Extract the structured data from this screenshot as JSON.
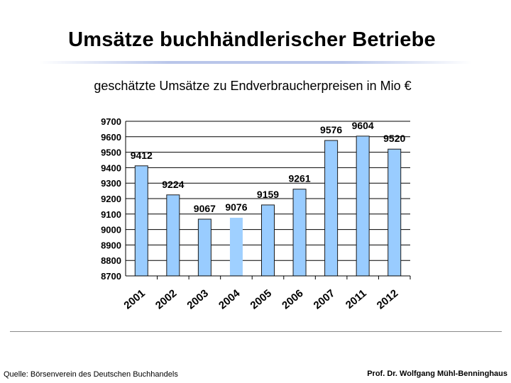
{
  "title": "Umsätze buchhändlerischer Betriebe",
  "subtitle": "geschätzte Umsätze zu Endverbraucherpreisen in Mio €",
  "footer": {
    "source": "Quelle: Börsenverein des Deutschen Buchhandels",
    "author": "Prof. Dr. Wolfgang Mühl-Benninghaus"
  },
  "colors": {
    "bar_primary": "#99ccff",
    "bar_highlight": "#9fd0ff",
    "bar_stroke": "#1a1a1a",
    "gridline": "#000000"
  },
  "chart_data": {
    "type": "bar",
    "title": "geschätzte Umsätze zu Endverbraucherpreisen in Mio €",
    "xlabel": "",
    "ylabel": "",
    "categories": [
      "2001",
      "2002",
      "2003",
      "2004",
      "2005",
      "2006",
      "2007",
      "2011",
      "2012"
    ],
    "values": [
      9412,
      9224,
      9067,
      9076,
      9159,
      9261,
      9576,
      9604,
      9520
    ],
    "highlighted": [
      false,
      false,
      false,
      true,
      false,
      false,
      false,
      false,
      false
    ],
    "ylim": [
      8700,
      9700
    ],
    "yticks": [
      "9700",
      "9600",
      "9500",
      "9400",
      "9300",
      "9200",
      "9100",
      "9000",
      "8900",
      "8800",
      "8700"
    ],
    "grid": true,
    "legend": "none"
  }
}
